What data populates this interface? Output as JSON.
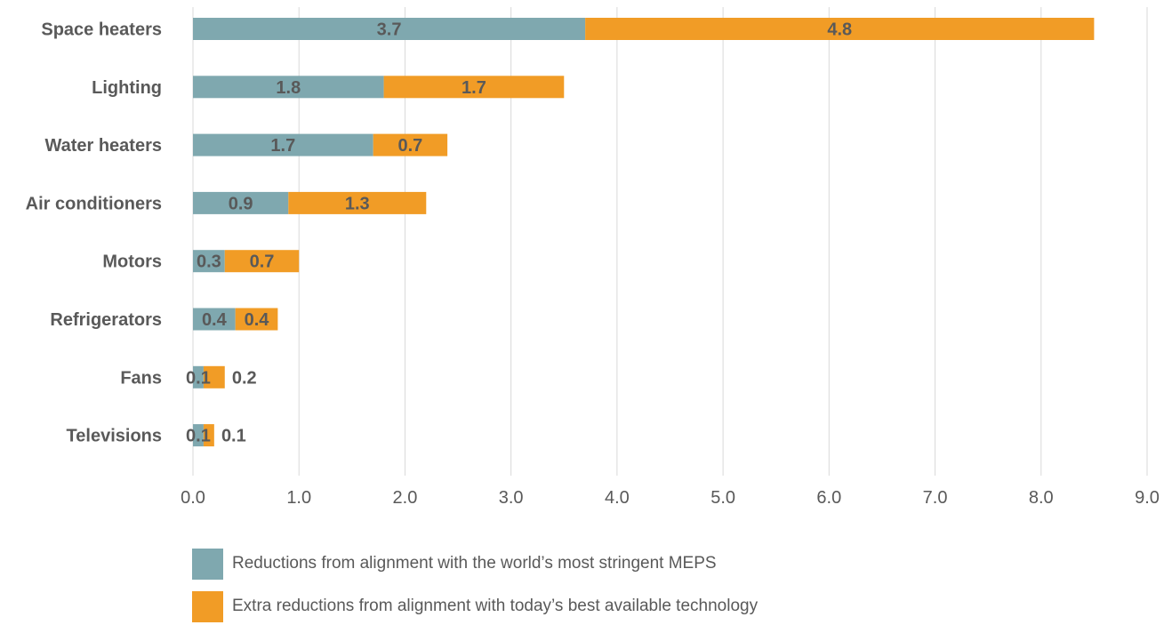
{
  "chart_data": {
    "type": "bar",
    "orientation": "horizontal",
    "stacked": true,
    "categories": [
      "Space heaters",
      "Lighting",
      "Water heaters",
      "Air conditioners",
      "Motors",
      "Refrigerators",
      "Fans",
      "Televisions"
    ],
    "series": [
      {
        "name": "Reductions from alignment with the world’s most stringent MEPS",
        "color": "#7FA8AF",
        "values": [
          3.7,
          1.8,
          1.7,
          0.9,
          0.3,
          0.4,
          0.1,
          0.1
        ],
        "labels": [
          "3.7",
          "1.8",
          "1.7",
          "0.9",
          "0.3",
          "0.4",
          "0.1",
          "0.1"
        ]
      },
      {
        "name": "Extra reductions from alignment with today’s best available technology",
        "color": "#F19C26",
        "values": [
          4.8,
          1.7,
          0.7,
          1.3,
          0.7,
          0.4,
          0.2,
          0.1
        ],
        "labels": [
          "4.8",
          "1.7",
          "0.7",
          "1.3",
          "0.7",
          "0.4",
          "0.2",
          "0.1"
        ]
      }
    ],
    "xlim": [
      0,
      9
    ],
    "xticks": [
      "0.0",
      "1.0",
      "2.0",
      "3.0",
      "4.0",
      "5.0",
      "6.0",
      "7.0",
      "8.0",
      "9.0"
    ],
    "grid": "vertical",
    "legend_position": "bottom",
    "title": "",
    "xlabel": "",
    "ylabel": ""
  }
}
